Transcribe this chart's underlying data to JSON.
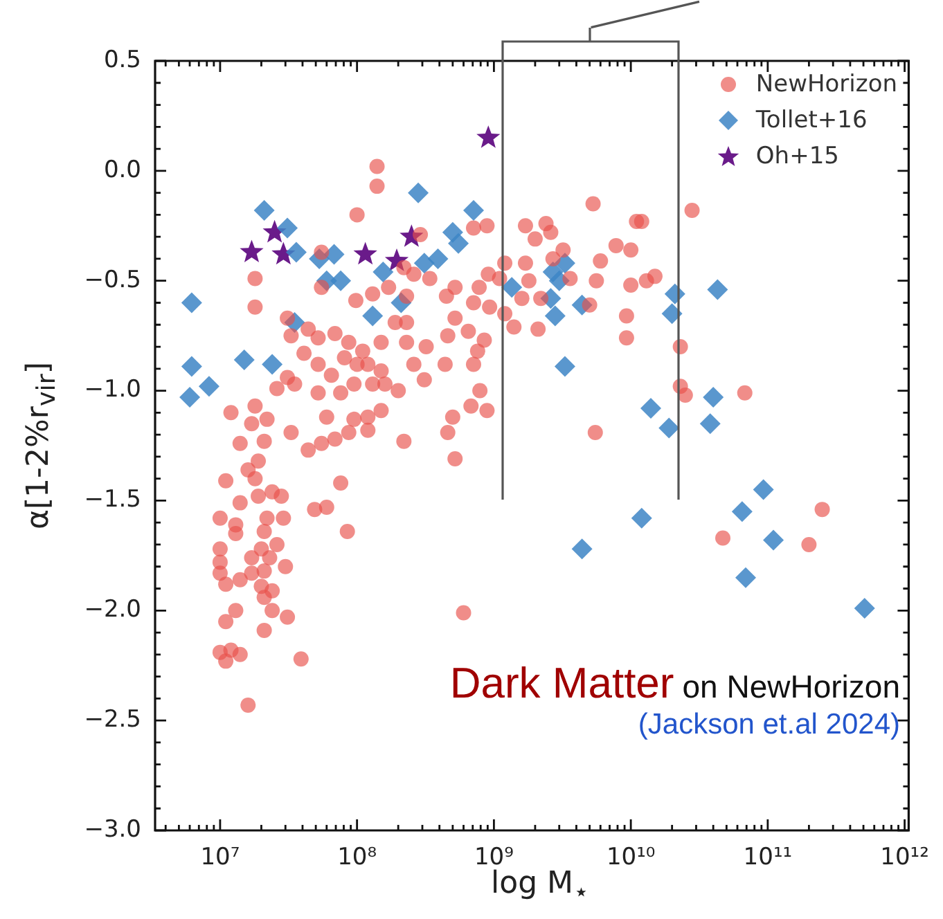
{
  "chart_data": {
    "type": "scatter",
    "xlabel": "log M$_{⋆}$",
    "ylabel": "α[1-2%r$_{vir}$]",
    "log": "x",
    "legend": "top right",
    "xlim": [
      3350000.0,
      1070000000000.0
    ],
    "xticks": [
      {
        "value": 10000000.0,
        "label": "10⁷"
      },
      {
        "value": 100000000.0,
        "label": "10⁸"
      },
      {
        "value": 1000000000.0,
        "label": "10⁹"
      },
      {
        "value": 10000000000.0,
        "label": "10¹⁰"
      },
      {
        "value": 100000000000.0,
        "label": "10¹¹"
      },
      {
        "value": 1000000000000.0,
        "label": "10¹²"
      }
    ],
    "ylim": [
      -3.0,
      0.5
    ],
    "yticks": [
      {
        "value": 0.5,
        "label": "0.5"
      },
      {
        "value": 0,
        "label": "0.0"
      },
      {
        "value": -0.5,
        "label": "−0.5"
      },
      {
        "value": -1,
        "label": "−1.0"
      },
      {
        "value": -1.5,
        "label": "−1.5"
      },
      {
        "value": -2,
        "label": "−2.0"
      },
      {
        "value": -2.5,
        "label": "−2.5"
      },
      {
        "value": -3,
        "label": "−3.0"
      }
    ],
    "series": [
      {
        "name": "NewHorizon",
        "color": "#e8504a",
        "marker": "circle",
        "x": [
          140000000.0,
          140000000.0,
          100000000.0,
          18000000.0,
          18000000.0,
          55000000.0,
          55000000.0,
          98000000.0,
          130000000.0,
          170000000.0,
          220000000.0,
          31000000.0,
          33000000.0,
          44000000.0,
          52000000.0,
          69000000.0,
          87000000.0,
          110000000.0,
          150000000.0,
          190000000.0,
          41000000.0,
          52000000.0,
          65000000.0,
          81000000.0,
          100000000.0,
          120000000.0,
          150000000.0,
          31000000.0,
          35000000.0,
          26000000.0,
          52000000.0,
          76000000.0,
          95000000.0,
          130000000.0,
          160000000.0,
          200000000.0,
          150000000.0,
          12000000.0,
          18000000.0,
          17000000.0,
          22000000.0,
          60000000.0,
          95000000.0,
          120000000.0,
          33000000.0,
          21000000.0,
          14000000.0,
          44000000.0,
          55000000.0,
          69000000.0,
          87000000.0,
          120000000.0,
          220000000.0,
          16000000.0,
          19000000.0,
          18000000.0,
          11000000.0,
          76000000.0,
          19000000.0,
          24000000.0,
          28000000.0,
          14000000.0,
          49000000.0,
          60000000.0,
          10000000.0,
          13000000.0,
          22000000.0,
          29000000.0,
          85000000.0,
          13000000.0,
          21000000.0,
          26000000.0,
          10000000.0,
          20000000.0,
          10000000.0,
          17000000.0,
          23000000.0,
          30000000.0,
          10000000.0,
          14000000.0,
          17000000.0,
          21000000.0,
          11000000.0,
          20000000.0,
          24000000.0,
          21000000.0,
          13000000.0,
          11000000.0,
          24000000.0,
          31000000.0,
          21000000.0,
          10000000.0,
          12000000.0,
          14000000.0,
          11000000.0,
          39000000.0,
          16000000.0,
          5300000000.0,
          1700000000.0,
          2400000000.0,
          2600000000.0,
          2000000000.0,
          11000000000.0,
          7800000000.0,
          10000000000.0,
          3200000000.0,
          2700000000.0,
          6000000000.0,
          1200000000.0,
          1700000000.0,
          890000000.0,
          710000000.0,
          290000000.0,
          260000000.0,
          340000000.0,
          520000000.0,
          780000000.0,
          910000000.0,
          1100000000.0,
          1800000000.0,
          3600000000.0,
          5600000000.0,
          10000000000.0,
          1600000000.0,
          2200000000.0,
          230000000.0,
          450000000.0,
          710000000.0,
          930000000.0,
          1200000000.0,
          1400000000.0,
          2100000000.0,
          5000000000.0,
          9300000000.0,
          9300000000.0,
          230000000.0,
          520000000.0,
          650000000.0,
          460000000.0,
          850000000.0,
          320000000.0,
          230000000.0,
          760000000.0,
          260000000.0,
          440000000.0,
          710000000.0,
          310000000.0,
          790000000.0,
          500000000.0,
          680000000.0,
          890000000.0,
          460000000.0,
          5500000000.0,
          28000000000.0,
          12000000000.0,
          13000000000.0,
          15000000000.0,
          23000000000.0,
          23000000000.0,
          25000000000.0,
          68000000000.0,
          520000000.0,
          600000000.0,
          47000000000.0,
          250000000000.0,
          200000000000.0
        ],
        "values": [
          0.02,
          -0.07,
          -0.2,
          -0.49,
          -0.62,
          -0.37,
          -0.53,
          -0.59,
          -0.56,
          -0.53,
          -0.44,
          -0.67,
          -0.75,
          -0.72,
          -0.76,
          -0.74,
          -0.78,
          -0.82,
          -0.78,
          -0.69,
          -0.83,
          -0.88,
          -0.93,
          -0.85,
          -0.88,
          -0.88,
          -0.91,
          -0.94,
          -0.97,
          -0.99,
          -1.01,
          -1.01,
          -0.97,
          -0.97,
          -0.97,
          -1.0,
          -1.09,
          -1.1,
          -1.07,
          -1.15,
          -1.13,
          -1.12,
          -1.13,
          -1.12,
          -1.19,
          -1.23,
          -1.24,
          -1.27,
          -1.24,
          -1.22,
          -1.19,
          -1.18,
          -1.23,
          -1.36,
          -1.32,
          -1.4,
          -1.41,
          -1.42,
          -1.48,
          -1.46,
          -1.48,
          -1.51,
          -1.54,
          -1.53,
          -1.58,
          -1.61,
          -1.58,
          -1.58,
          -1.64,
          -1.65,
          -1.64,
          -1.7,
          -1.72,
          -1.72,
          -1.78,
          -1.76,
          -1.76,
          -1.8,
          -1.83,
          -1.86,
          -1.83,
          -1.82,
          -1.88,
          -1.89,
          -1.91,
          -1.94,
          -2.0,
          -2.05,
          -2.0,
          -2.03,
          -2.09,
          -2.19,
          -2.18,
          -2.2,
          -2.23,
          -2.22,
          -2.43,
          -0.15,
          -0.25,
          -0.24,
          -0.28,
          -0.31,
          -0.23,
          -0.34,
          -0.36,
          -0.36,
          -0.4,
          -0.41,
          -0.42,
          -0.42,
          -0.25,
          -0.26,
          -0.29,
          -0.47,
          -0.49,
          -0.53,
          -0.53,
          -0.47,
          -0.49,
          -0.5,
          -0.49,
          -0.5,
          -0.52,
          -0.58,
          -0.58,
          -0.57,
          -0.57,
          -0.6,
          -0.62,
          -0.65,
          -0.71,
          -0.72,
          -0.61,
          -0.66,
          -0.76,
          -0.69,
          -0.67,
          -0.73,
          -0.75,
          -0.77,
          -0.8,
          -0.78,
          -0.82,
          -0.88,
          -0.88,
          -0.88,
          -0.95,
          -1.0,
          -1.12,
          -1.07,
          -1.09,
          -1.19,
          -1.19,
          -0.18,
          -0.23,
          -0.5,
          -0.48,
          -0.8,
          -0.98,
          -1.02,
          -1.01,
          -1.31,
          -2.01,
          -1.67,
          -1.54,
          -1.7
        ]
      },
      {
        "name": "Tollet+16",
        "color": "#3d85c6",
        "marker": "diamond",
        "x": [
          21000000.0,
          31000000.0,
          36000000.0,
          53000000.0,
          68000000.0,
          60000000.0,
          76000000.0,
          6200000.0,
          6200000.0,
          8300000.0,
          6000000.0,
          15000000.0,
          24000000.0,
          35000000.0,
          155000000.0,
          130000000.0,
          210000000.0,
          280000000.0,
          710000000.0,
          500000000.0,
          550000000.0,
          390000000.0,
          310000000.0,
          1350000000.0,
          2700000000.0,
          3300000000.0,
          3000000000.0,
          2600000000.0,
          4400000000.0,
          2800000000.0,
          3300000000.0,
          14000000000.0,
          21000000000.0,
          43000000000.0,
          20000000000.0,
          19000000000.0,
          40000000000.0,
          38000000000.0,
          93000000000.0,
          68000000000.0,
          65000000000.0,
          110000000000.0,
          69000000000.0,
          510000000000.0,
          12000000000.0,
          4400000000.0
        ],
        "values": [
          -0.18,
          -0.26,
          -0.37,
          -0.4,
          -0.38,
          -0.5,
          -0.5,
          -0.6,
          -0.89,
          -0.98,
          -1.03,
          -0.86,
          -0.88,
          -0.69,
          -0.46,
          -0.66,
          -0.6,
          -0.1,
          -0.18,
          -0.28,
          -0.33,
          -0.4,
          -0.42,
          -0.53,
          -0.46,
          -0.42,
          -0.5,
          -0.58,
          -0.61,
          -0.66,
          -0.89,
          -1.08,
          -0.56,
          -0.54,
          -0.65,
          -1.17,
          -1.03,
          -1.15,
          -1.45,
          null,
          -1.55,
          -1.68,
          -1.85,
          -1.99,
          -1.58,
          -1.72
        ]
      },
      {
        "name": "Oh+15",
        "color": "#6a1b8a",
        "marker": "star",
        "x": [
          17000000.0,
          25000000.0,
          29000000.0,
          115000000.0,
          195000000.0,
          250000000.0,
          910000000.0
        ],
        "values": [
          -0.37,
          -0.28,
          -0.38,
          -0.38,
          -0.41,
          -0.3,
          0.15
        ]
      }
    ],
    "annotations": [
      "Dark Matter",
      "on NewHorizon",
      "(Jackson et.al 2024)"
    ]
  }
}
